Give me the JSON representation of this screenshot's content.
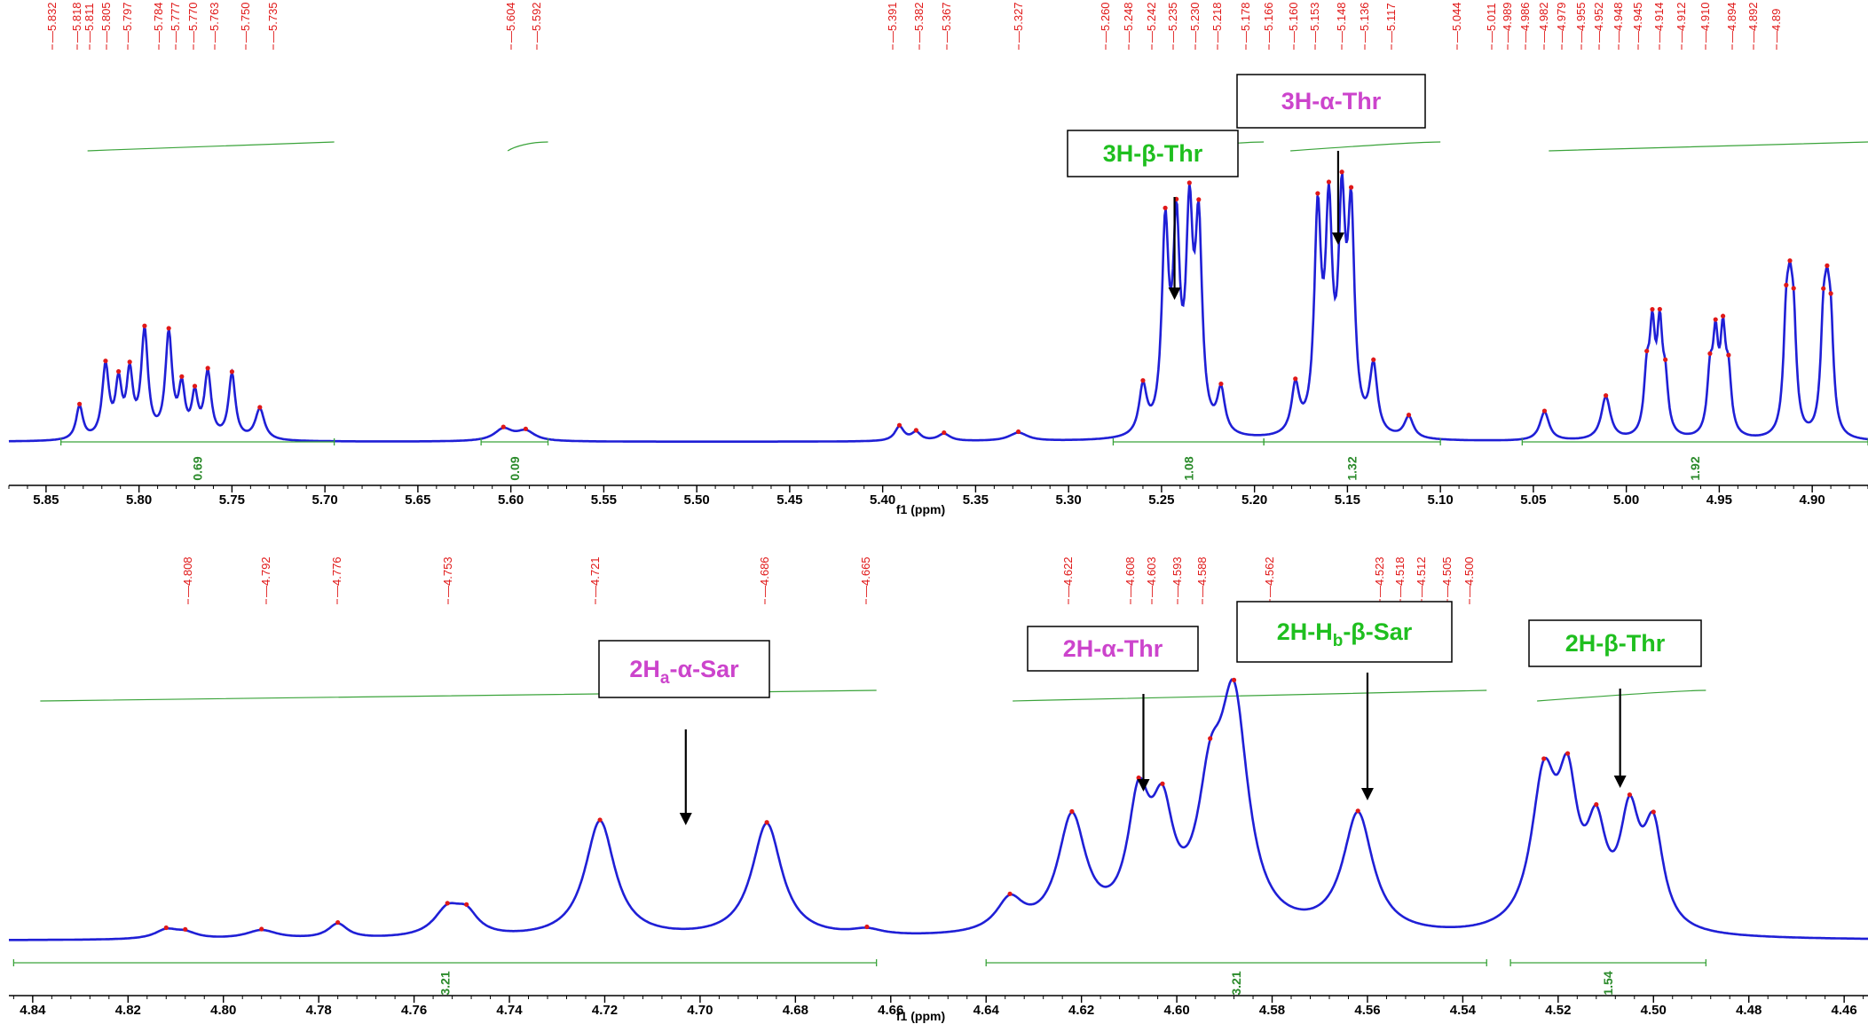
{
  "chart_data": [
    {
      "type": "line",
      "xlabel": "f1 (ppm)",
      "xlim": [
        5.87,
        4.87
      ],
      "ticks": [
        "5.85",
        "5.80",
        "5.75",
        "5.70",
        "5.65",
        "5.60",
        "5.55",
        "5.50",
        "5.45",
        "5.40",
        "5.35",
        "5.30",
        "5.25",
        "5.20",
        "5.15",
        "5.10",
        "5.05",
        "5.00",
        "4.95",
        "4.90"
      ],
      "peak_labels": [
        "5.832",
        "5.818",
        "5.811",
        "5.805",
        "5.797",
        "5.784",
        "5.777",
        "5.770",
        "5.763",
        "5.750",
        "5.735",
        "5.604",
        "5.592",
        "5.391",
        "5.382",
        "5.367",
        "5.327",
        "5.260",
        "5.248",
        "5.242",
        "5.235",
        "5.230",
        "5.218",
        "5.178",
        "5.166",
        "5.160",
        "5.153",
        "5.148",
        "5.136",
        "5.117",
        "5.044",
        "5.011",
        "4.989",
        "4.986",
        "4.982",
        "4.979",
        "4.955",
        "4.952",
        "4.948",
        "4.945",
        "4.914",
        "4.912",
        "4.910",
        "4.894",
        "4.892",
        "4.89"
      ],
      "integrals": [
        {
          "from": 5.842,
          "to": 5.695,
          "value": "0.69"
        },
        {
          "from": 5.616,
          "to": 5.58,
          "value": "0.09"
        },
        {
          "from": 5.276,
          "to": 5.195,
          "value": "1.08"
        },
        {
          "from": 5.195,
          "to": 5.1,
          "value": "1.32"
        },
        {
          "from": 5.056,
          "to": 4.87,
          "value": "1.92"
        }
      ],
      "annotations": [
        {
          "text": "3H-β-Thr",
          "arrow_x": 5.243,
          "color": "green"
        },
        {
          "text": "3H-α-Thr",
          "arrow_x": 5.155,
          "color": "magenta"
        }
      ],
      "series": [
        {
          "peaks": [
            {
              "x": 5.832,
              "h": 0.14,
              "w": 0.0022
            },
            {
              "x": 5.818,
              "h": 0.3,
              "w": 0.0022
            },
            {
              "x": 5.811,
              "h": 0.22,
              "w": 0.002
            },
            {
              "x": 5.805,
              "h": 0.26,
              "w": 0.002
            },
            {
              "x": 5.797,
              "h": 0.44,
              "w": 0.0022
            },
            {
              "x": 5.784,
              "h": 0.43,
              "w": 0.0022
            },
            {
              "x": 5.777,
              "h": 0.2,
              "w": 0.002
            },
            {
              "x": 5.77,
              "h": 0.17,
              "w": 0.002
            },
            {
              "x": 5.763,
              "h": 0.27,
              "w": 0.0022
            },
            {
              "x": 5.75,
              "h": 0.27,
              "w": 0.0022
            },
            {
              "x": 5.735,
              "h": 0.13,
              "w": 0.003
            },
            {
              "x": 5.604,
              "h": 0.05,
              "w": 0.006
            },
            {
              "x": 5.592,
              "h": 0.04,
              "w": 0.006
            },
            {
              "x": 5.391,
              "h": 0.06,
              "w": 0.003
            },
            {
              "x": 5.382,
              "h": 0.035,
              "w": 0.003
            },
            {
              "x": 5.367,
              "h": 0.03,
              "w": 0.004
            },
            {
              "x": 5.327,
              "h": 0.035,
              "w": 0.006
            },
            {
              "x": 5.26,
              "h": 0.2,
              "w": 0.0025
            },
            {
              "x": 5.248,
              "h": 0.83,
              "w": 0.0022
            },
            {
              "x": 5.242,
              "h": 0.8,
              "w": 0.0022
            },
            {
              "x": 5.235,
              "h": 0.84,
              "w": 0.0022
            },
            {
              "x": 5.23,
              "h": 0.82,
              "w": 0.0022
            },
            {
              "x": 5.218,
              "h": 0.18,
              "w": 0.0025
            },
            {
              "x": 5.178,
              "h": 0.2,
              "w": 0.0025
            },
            {
              "x": 5.166,
              "h": 0.88,
              "w": 0.0022
            },
            {
              "x": 5.16,
              "h": 0.86,
              "w": 0.0022
            },
            {
              "x": 5.153,
              "h": 0.87,
              "w": 0.0022
            },
            {
              "x": 5.148,
              "h": 0.86,
              "w": 0.0022
            },
            {
              "x": 5.136,
              "h": 0.28,
              "w": 0.0025
            },
            {
              "x": 5.117,
              "h": 0.09,
              "w": 0.003
            },
            {
              "x": 5.044,
              "h": 0.12,
              "w": 0.003
            },
            {
              "x": 5.011,
              "h": 0.18,
              "w": 0.003
            },
            {
              "x": 4.989,
              "h": 0.23,
              "w": 0.0018
            },
            {
              "x": 4.986,
              "h": 0.4,
              "w": 0.0018
            },
            {
              "x": 4.982,
              "h": 0.41,
              "w": 0.0018
            },
            {
              "x": 4.979,
              "h": 0.19,
              "w": 0.0018
            },
            {
              "x": 4.955,
              "h": 0.23,
              "w": 0.0018
            },
            {
              "x": 4.952,
              "h": 0.36,
              "w": 0.0018
            },
            {
              "x": 4.948,
              "h": 0.38,
              "w": 0.0018
            },
            {
              "x": 4.945,
              "h": 0.22,
              "w": 0.0018
            },
            {
              "x": 4.914,
              "h": 0.4,
              "w": 0.0018
            },
            {
              "x": 4.912,
              "h": 0.39,
              "w": 0.0018
            },
            {
              "x": 4.91,
              "h": 0.38,
              "w": 0.0018
            },
            {
              "x": 4.894,
              "h": 0.39,
              "w": 0.0018
            },
            {
              "x": 4.892,
              "h": 0.38,
              "w": 0.0018
            },
            {
              "x": 4.89,
              "h": 0.37,
              "w": 0.0018
            }
          ]
        }
      ]
    },
    {
      "type": "line",
      "xlabel": "f1 (ppm)",
      "xlim": [
        4.845,
        4.455
      ],
      "ticks": [
        "4.84",
        "4.82",
        "4.80",
        "4.78",
        "4.76",
        "4.74",
        "4.72",
        "4.70",
        "4.68",
        "4.66",
        "4.64",
        "4.62",
        "4.60",
        "4.58",
        "4.56",
        "4.54",
        "4.52",
        "4.50",
        "4.48",
        "4.46"
      ],
      "peak_labels": [
        "4.808",
        "4.792",
        "4.776",
        "4.753",
        "4.721",
        "4.686",
        "4.665",
        "4.622",
        "4.608",
        "4.603",
        "4.593",
        "4.588",
        "4.562",
        "4.523",
        "4.518",
        "4.512",
        "4.505",
        "4.500"
      ],
      "integrals": [
        {
          "from": 4.844,
          "to": 4.663,
          "value": "3.21"
        },
        {
          "from": 4.64,
          "to": 4.535,
          "value": "3.21"
        },
        {
          "from": 4.53,
          "to": 4.489,
          "value": "1.54"
        }
      ],
      "annotations": [
        {
          "text": "2Ha-α-Sar",
          "arrow_x": 4.703,
          "color": "magenta"
        },
        {
          "text": "2H-α-Thr",
          "arrow_x": 4.607,
          "color": "magenta"
        },
        {
          "text": "2H-Hb-β-Sar",
          "arrow_x": 4.56,
          "color": "green"
        },
        {
          "text": "2H-β-Thr",
          "arrow_x": 4.507,
          "color": "green"
        }
      ],
      "series": [
        {
          "peaks": [
            {
              "x": 4.812,
              "h": 0.03,
              "w": 0.003
            },
            {
              "x": 4.808,
              "h": 0.02,
              "w": 0.003
            },
            {
              "x": 4.792,
              "h": 0.03,
              "w": 0.004
            },
            {
              "x": 4.776,
              "h": 0.05,
              "w": 0.0025
            },
            {
              "x": 4.753,
              "h": 0.09,
              "w": 0.0035
            },
            {
              "x": 4.749,
              "h": 0.07,
              "w": 0.003
            },
            {
              "x": 4.721,
              "h": 0.4,
              "w": 0.0038
            },
            {
              "x": 4.686,
              "h": 0.39,
              "w": 0.0038
            },
            {
              "x": 4.665,
              "h": 0.02,
              "w": 0.004
            },
            {
              "x": 4.635,
              "h": 0.11,
              "w": 0.0035
            },
            {
              "x": 4.622,
              "h": 0.39,
              "w": 0.0036
            },
            {
              "x": 4.608,
              "h": 0.4,
              "w": 0.0028
            },
            {
              "x": 4.603,
              "h": 0.34,
              "w": 0.0028
            },
            {
              "x": 4.593,
              "h": 0.38,
              "w": 0.0032
            },
            {
              "x": 4.588,
              "h": 0.74,
              "w": 0.0036
            },
            {
              "x": 4.562,
              "h": 0.41,
              "w": 0.0038
            },
            {
              "x": 4.523,
              "h": 0.5,
              "w": 0.0032
            },
            {
              "x": 4.518,
              "h": 0.42,
              "w": 0.0025
            },
            {
              "x": 4.512,
              "h": 0.3,
              "w": 0.0025
            },
            {
              "x": 4.505,
              "h": 0.36,
              "w": 0.0025
            },
            {
              "x": 4.5,
              "h": 0.33,
              "w": 0.0025
            }
          ]
        }
      ]
    }
  ]
}
